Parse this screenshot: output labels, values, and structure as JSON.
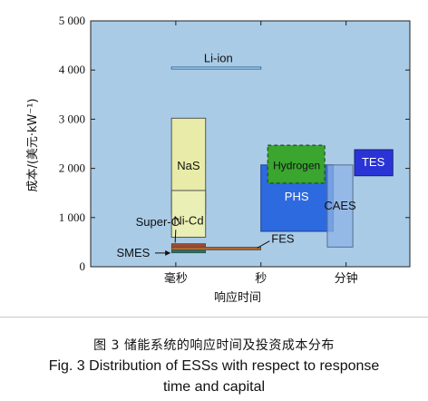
{
  "chart_data": {
    "type": "range",
    "xlabel": "响应时间",
    "ylabel": "成本/(美元·kW⁻¹)",
    "ylim": [
      0,
      5000
    ],
    "yticks": [
      0,
      1000,
      2000,
      3000,
      4000,
      5000
    ],
    "ytick_labels": [
      "0",
      "1 000",
      "2 000",
      "3 000",
      "4 000",
      "5 000"
    ],
    "xticks": [
      1,
      2,
      3
    ],
    "xtick_labels": [
      "毫秒",
      "秒",
      "分钟"
    ],
    "xlim": [
      0,
      3.75
    ],
    "background": "#a9cbe6",
    "technologies": [
      {
        "name": "Li-ion",
        "x0": 0.95,
        "x1": 2.0,
        "y0": 4020,
        "y1": 4060,
        "fill": "#b5e3f5",
        "stroke": "#3a6a9c",
        "label_x": 1.5,
        "label_y": 4230,
        "label_color": "#111111"
      },
      {
        "name": "NaS",
        "x0": 0.95,
        "x1": 1.35,
        "y0": 1550,
        "y1": 3020,
        "fill": "#e8eca8",
        "stroke": "#555555",
        "label_x": 1.15,
        "label_y": 2050,
        "label_color": "#111111"
      },
      {
        "name": "Ni-Cd",
        "x0": 0.95,
        "x1": 1.35,
        "y0": 600,
        "y1": 1550,
        "fill": "#e9efb5",
        "stroke": "#555555",
        "label_x": 1.15,
        "label_y": 930,
        "label_color": "#111111"
      },
      {
        "name": "PHS",
        "x0": 2.0,
        "x1": 2.85,
        "y0": 720,
        "y1": 2070,
        "fill": "#2d6ae0",
        "stroke": "#1f3f8f",
        "label_x": 2.42,
        "label_y": 1420,
        "label_color": "#ffffff"
      },
      {
        "name": "Hydrogen",
        "x0": 2.08,
        "x1": 2.75,
        "y0": 1700,
        "y1": 2470,
        "fill": "#3aa52f",
        "stroke": "#1f4f1f",
        "label_x": 2.42,
        "label_y": 2060,
        "label_color": "#111111",
        "dashed": true
      },
      {
        "name": "CAES",
        "x0": 2.78,
        "x1": 3.08,
        "y0": 400,
        "y1": 2070,
        "fill": "#8fb3e6",
        "stroke": "#5a6c8c",
        "label_x": 2.93,
        "label_y": 1240,
        "label_color": "#111111",
        "alpha": 0.75
      },
      {
        "name": "TES",
        "x0": 3.1,
        "x1": 3.55,
        "y0": 1850,
        "y1": 2380,
        "fill": "#2a34d6",
        "stroke": "#1a1f7a",
        "label_x": 3.32,
        "label_y": 2120,
        "label_color": "#ffffff"
      }
    ],
    "overlay": {
      "x0": 0.95,
      "x1": 1.35,
      "y0": 1070,
      "y1": 1550,
      "fill": "#d6dd83"
    },
    "lines": [
      {
        "name": "Super-C",
        "x0": 0.95,
        "x1": 1.35,
        "y0": 380,
        "y1": 470,
        "fill": "#9c4a2f",
        "label_x": 0.68,
        "label_y": 900
      },
      {
        "name": "FES",
        "x0": 0.95,
        "x1": 2.0,
        "y0": 340,
        "y1": 400,
        "fill": "#a86a33",
        "label_x": 2.07,
        "label_y": 560
      },
      {
        "name": "SMES",
        "x0": 0.95,
        "x1": 1.35,
        "y0": 280,
        "y1": 330,
        "fill": "#1b7a6a",
        "label_x": 0.5,
        "label_y": 280
      }
    ]
  },
  "caption": {
    "cn": "图 3   储能系统的响应时间及投资成本分布",
    "en_line1": "Fig. 3    Distribution of ESSs with respect to response",
    "en_line2": "time and capital"
  }
}
